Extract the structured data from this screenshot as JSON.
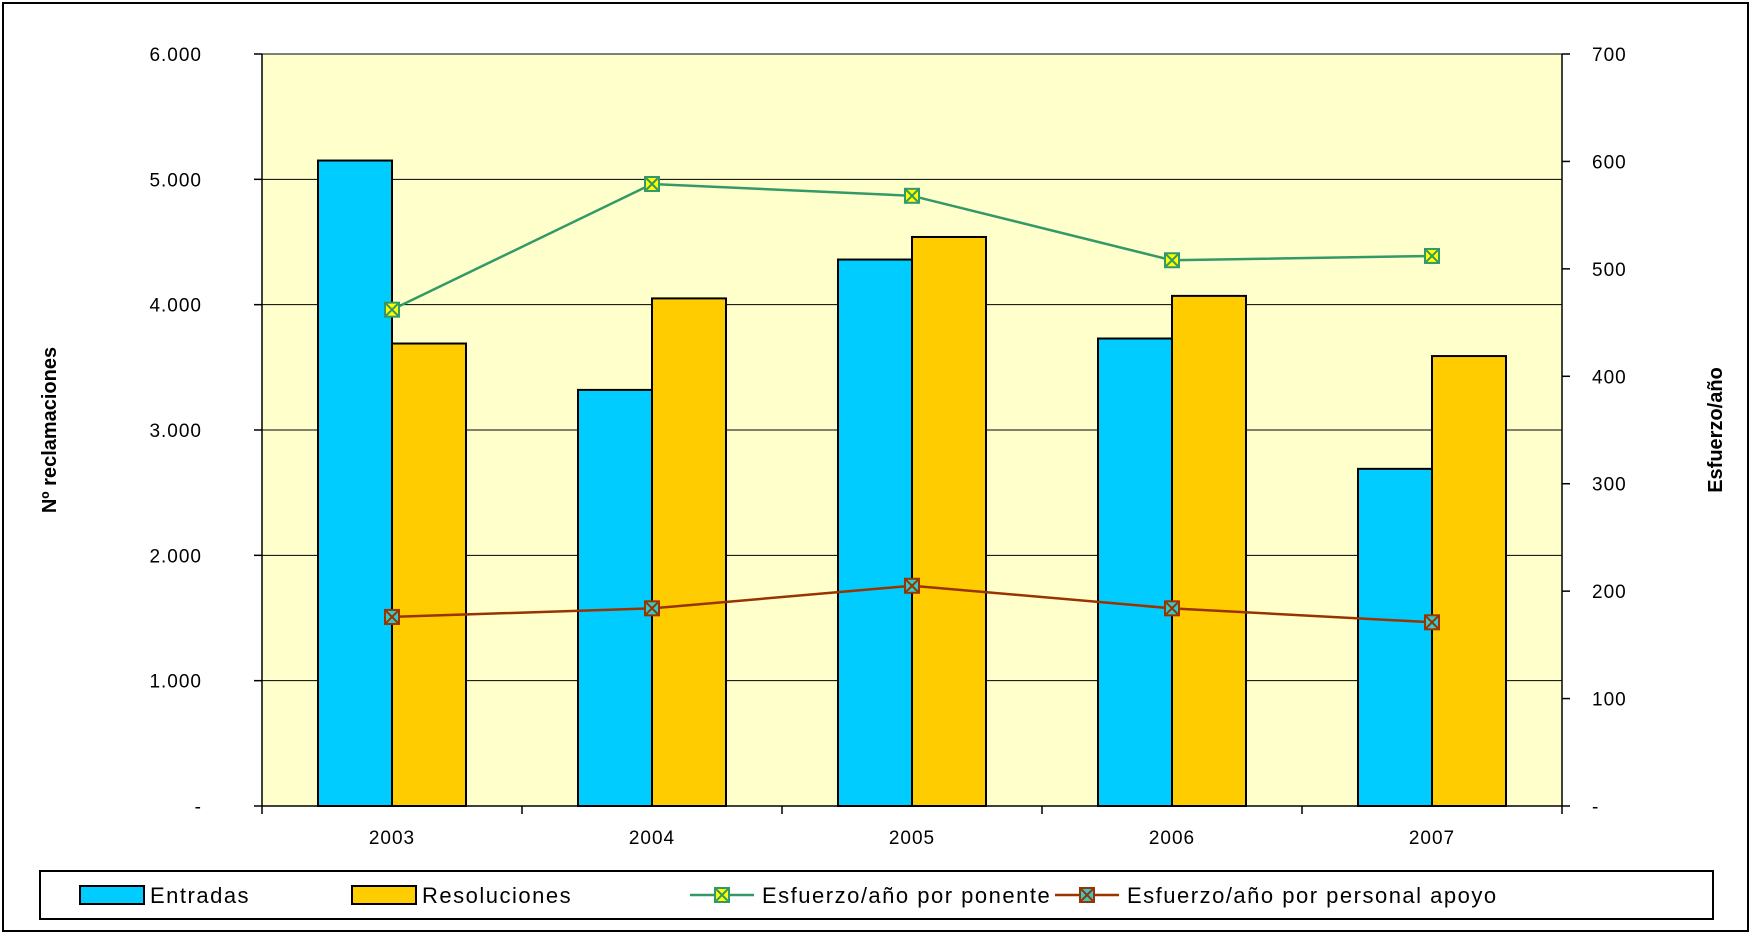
{
  "chart_data": {
    "type": "bar",
    "categories": [
      "2003",
      "2004",
      "2005",
      "2006",
      "2007"
    ],
    "series": [
      {
        "name": "Entradas",
        "kind": "bar",
        "axis": "left",
        "color": "#00CCFF",
        "values": [
          5150,
          3320,
          4360,
          3730,
          2690
        ]
      },
      {
        "name": "Resoluciones",
        "kind": "bar",
        "axis": "left",
        "color": "#FFCC00",
        "values": [
          3690,
          4050,
          4540,
          4070,
          3590
        ]
      },
      {
        "name": "Esfuerzo/año por ponente",
        "kind": "line",
        "axis": "right",
        "color": "#339966",
        "marker_fill": "#FFFF00",
        "values": [
          462,
          579,
          568,
          508,
          512
        ]
      },
      {
        "name": "Esfuerzo/año por personal apoyo",
        "kind": "line",
        "axis": "right",
        "color": "#993300",
        "marker_fill": "#33CCCC",
        "values": [
          176,
          184,
          205,
          184,
          171
        ]
      }
    ],
    "ylabel": "Nº reclamaciones",
    "y2label": "Esfuerzo/año",
    "ylim": [
      0,
      6000
    ],
    "y2lim": [
      0,
      700
    ],
    "yticks": [
      "-",
      "1.000",
      "2.000",
      "3.000",
      "4.000",
      "5.000",
      "6.000"
    ],
    "y2ticks": [
      "-",
      "100",
      "200",
      "300",
      "400",
      "500",
      "600",
      "700"
    ],
    "grid": true,
    "plot_background": "#FFFFCC",
    "legend_position": "bottom"
  }
}
